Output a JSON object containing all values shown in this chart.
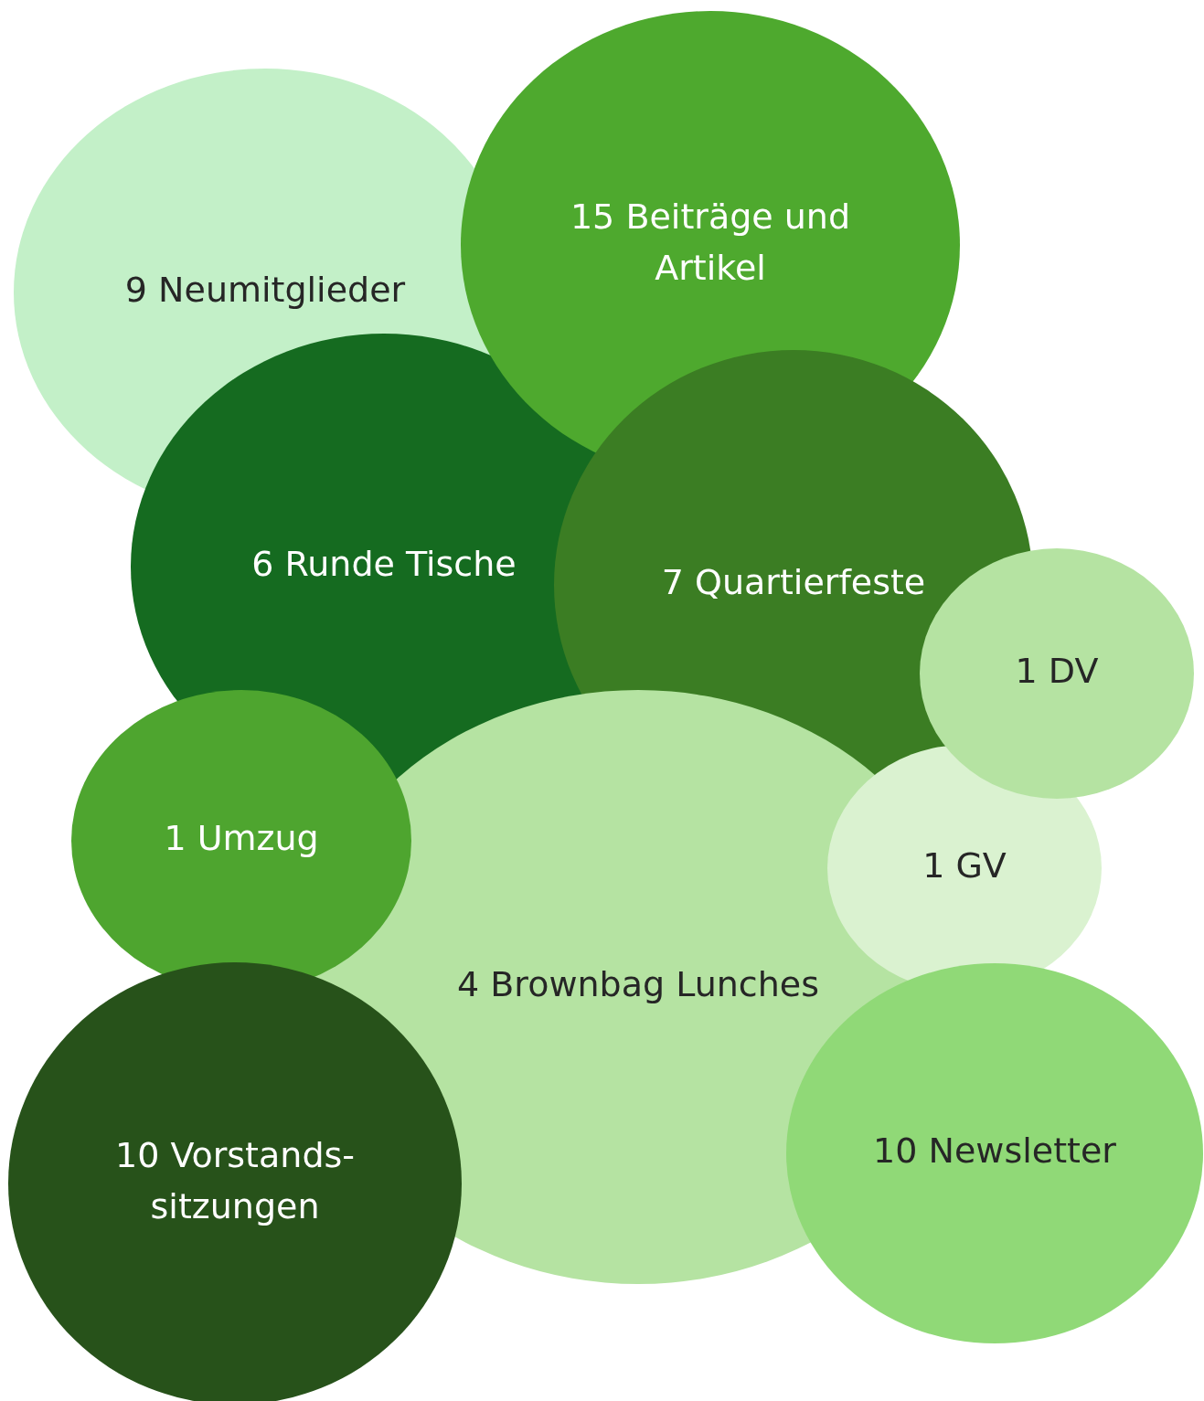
{
  "chart_data": {
    "type": "other",
    "categories": [
      "Neumitglieder",
      "Runde Tische",
      "Beiträge und Artikel",
      "Quartierfeste",
      "Brownbag Lunches",
      "Umzug",
      "Vorstands-sitzungen",
      "GV",
      "DV",
      "Newsletter"
    ],
    "values": [
      9,
      6,
      15,
      7,
      4,
      1,
      10,
      1,
      1,
      10
    ],
    "data_labels": true,
    "colors": [
      "#c3f0c8",
      "#156b20",
      "#4ea92e",
      "#3b7d23",
      "#b5e3a2",
      "#4ea52f",
      "#27521a",
      "#daf2d0",
      "#b5e3a2",
      "#90d977"
    ]
  }
}
